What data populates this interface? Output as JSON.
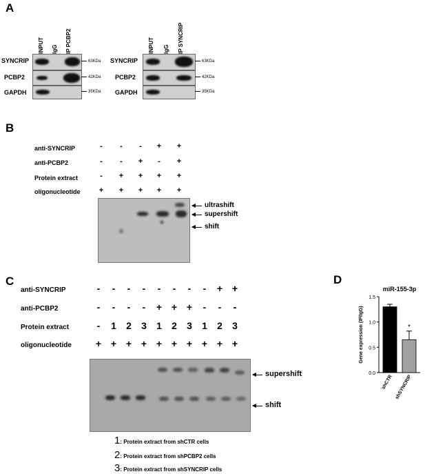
{
  "panels": {
    "a": "A",
    "b": "B",
    "c": "C",
    "d": "D"
  },
  "panel_a": {
    "left": {
      "columns": [
        "INPUT",
        "IgG",
        "IP PCBP2"
      ],
      "rows": [
        "SYNCRIP",
        "PCBP2",
        "GAPDH"
      ],
      "markers": [
        "63KDa",
        "42KDa",
        "35KDa"
      ]
    },
    "right": {
      "columns": [
        "INPUT",
        "IgG",
        "IP SYNCRIP"
      ],
      "rows": [
        "SYNCRIP",
        "PCBP2",
        "GAPDH"
      ],
      "markers": [
        "63KDa",
        "42KDa",
        "35KDa"
      ]
    }
  },
  "panel_b": {
    "row_labels": [
      "anti-SYNCRIP",
      "anti-PCBP2",
      "Protein extract",
      "oligonucleotide"
    ],
    "rows": [
      [
        "-",
        "-",
        "-",
        "+",
        "+"
      ],
      [
        "-",
        "-",
        "+",
        "-",
        "+"
      ],
      [
        "-",
        "+",
        "+",
        "+",
        "+"
      ],
      [
        "+",
        "+",
        "+",
        "+",
        "+"
      ]
    ],
    "arrows": [
      "ultrashift",
      "supershift",
      "shift"
    ]
  },
  "panel_c": {
    "row_labels": [
      "anti-SYNCRIP",
      "anti-PCBP2",
      "Protein extract",
      "oligonucleotide"
    ],
    "rows": [
      [
        "-",
        "-",
        "-",
        "-",
        "-",
        "-",
        "-",
        "-",
        "+",
        "+",
        "+"
      ],
      [
        "-",
        "-",
        "-",
        "-",
        "+",
        "+",
        "+",
        "-",
        "-",
        "-",
        "-"
      ],
      [
        "-",
        "1",
        "2",
        "3",
        "1",
        "2",
        "3",
        "1",
        "2",
        "3",
        ""
      ],
      [
        "+",
        "+",
        "+",
        "+",
        "+",
        "+",
        "+",
        "+",
        "+",
        "+",
        "+"
      ]
    ],
    "arrows": [
      "supershift",
      "shift"
    ],
    "legend": [
      {
        "num": "1",
        "text": ": Protein extract from shCTR cells"
      },
      {
        "num": "2",
        "text": ": Protein extract from shPCBP2 cells"
      },
      {
        "num": "3",
        "text": ": Protein extract from shSYNCRIP  cells"
      }
    ]
  },
  "chart_data": {
    "type": "bar",
    "title": "miR-155-3p",
    "categories": [
      "shCTR",
      "shSYNCRIP"
    ],
    "values": [
      1.3,
      0.65
    ],
    "errors": [
      0.05,
      0.17
    ],
    "ylabel": "Gene expression (IP/IgG)",
    "ylim": [
      0,
      1.5
    ],
    "yticks": [
      "0.0",
      "0.5",
      "1.0",
      "1.5"
    ],
    "colors": [
      "#000000",
      "#a0a0a0"
    ],
    "annotations": [
      "*"
    ]
  }
}
